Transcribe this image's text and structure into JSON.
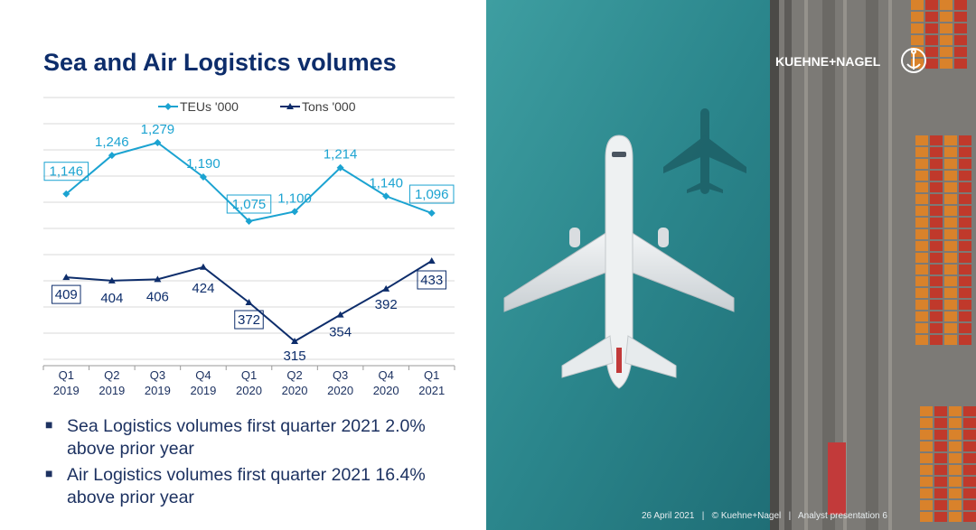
{
  "title": "Sea and Air Logistics volumes",
  "bullets": [
    "Sea Logistics volumes first quarter 2021 2.0% above prior year",
    "Air Logistics volumes first quarter 2021 16.4% above prior year"
  ],
  "brand": "KUEHNE+NAGEL",
  "footer": {
    "date": "26 April 2021",
    "copyright": "© Kuehne+Nagel",
    "doc": "Analyst presentation",
    "page": "6",
    "separator": "|"
  },
  "colors": {
    "title": "#0d2d6b",
    "teu_series": "#1ba3d1",
    "tons_series": "#0d2d6b",
    "grid": "#d9d9d9",
    "sea": "#2f8e93"
  },
  "photo": {
    "description_icon": "airplane-over-container-port",
    "icons": [
      "airplane-icon",
      "anchor-logo-icon"
    ]
  },
  "chart_data": {
    "type": "line",
    "categories": [
      [
        "Q1",
        "2019"
      ],
      [
        "Q2",
        "2019"
      ],
      [
        "Q3",
        "2019"
      ],
      [
        "Q4",
        "2019"
      ],
      [
        "Q1",
        "2020"
      ],
      [
        "Q2",
        "2020"
      ],
      [
        "Q3",
        "2020"
      ],
      [
        "Q4",
        "2020"
      ],
      [
        "Q1",
        "2021"
      ]
    ],
    "series": [
      {
        "name": "TEUs '000",
        "values": [
          1146,
          1246,
          1279,
          1190,
          1075,
          1100,
          1214,
          1140,
          1096
        ],
        "labels": [
          "1,146",
          "1,246",
          "1,279",
          "1,190",
          "1,075",
          "1,100",
          "1,214",
          "1,140",
          "1,096"
        ],
        "boxed": [
          0,
          4,
          8
        ],
        "marker": "diamond"
      },
      {
        "name": "Tons '000",
        "values": [
          409,
          404,
          406,
          424,
          372,
          315,
          354,
          392,
          433
        ],
        "labels": [
          "409",
          "404",
          "406",
          "424",
          "372",
          "315",
          "354",
          "392",
          "433"
        ],
        "boxed": [
          0,
          4,
          8
        ],
        "marker": "triangle"
      }
    ],
    "legend_position": "top-center",
    "grid": true
  }
}
